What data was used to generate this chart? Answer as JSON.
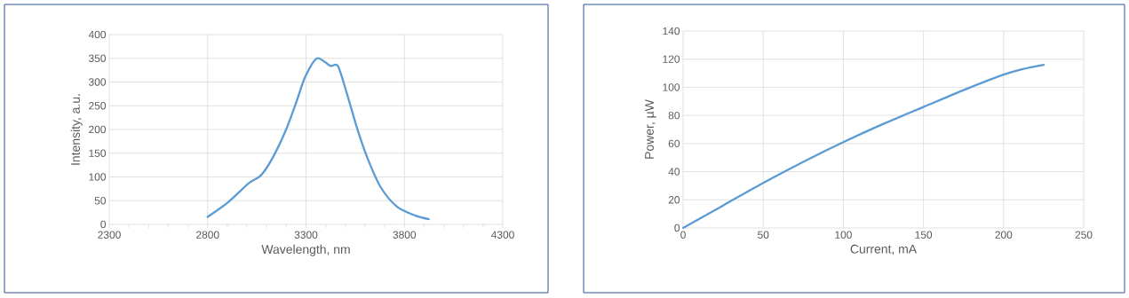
{
  "chart_data": [
    {
      "type": "line",
      "xlabel": "Wavelength, nm",
      "ylabel": "Intensity, a.u.",
      "grid": true,
      "marker": "none",
      "line_style": "solid",
      "xlim": [
        2300,
        4300
      ],
      "ylim": [
        0,
        400
      ],
      "xticks": [
        2300,
        {
          "value": 2400,
          "label": null
        },
        {
          "value": 2500,
          "label": null
        },
        {
          "value": 2600,
          "label": null
        },
        {
          "value": 2700,
          "label": null
        },
        2800,
        {
          "value": 2900,
          "label": null
        },
        {
          "value": 3000,
          "label": null
        },
        {
          "value": 3100,
          "label": null
        },
        {
          "value": 3200,
          "label": null
        },
        3300,
        {
          "value": 3400,
          "label": null
        },
        {
          "value": 3500,
          "label": null
        },
        {
          "value": 3600,
          "label": null
        },
        {
          "value": 3700,
          "label": null
        },
        3800,
        {
          "value": 3900,
          "label": null
        },
        {
          "value": 4000,
          "label": null
        },
        {
          "value": 4100,
          "label": null
        },
        {
          "value": 4200,
          "label": null
        },
        4300
      ],
      "yticks": [
        0,
        50,
        100,
        150,
        200,
        250,
        300,
        350,
        400
      ],
      "series": [
        {
          "color": "#5b9bd5",
          "x": [
            2800,
            2905,
            3010,
            3070,
            3130,
            3198,
            3251,
            3296,
            3356,
            3424,
            3462,
            3507,
            3560,
            3612,
            3680,
            3763,
            3853,
            3924
          ],
          "values": [
            16,
            47,
            87,
            103,
            140,
            199,
            258,
            311,
            350,
            334,
            334,
            277,
            202,
            140,
            78,
            37,
            19,
            11
          ]
        }
      ]
    },
    {
      "type": "line",
      "xlabel": "Current, mA",
      "ylabel": "Power, µW",
      "grid": true,
      "marker": "none",
      "line_style": "solid",
      "xlim": [
        0,
        250
      ],
      "ylim": [
        0,
        140
      ],
      "xticks": [
        0,
        50,
        100,
        150,
        200,
        250
      ],
      "yticks": [
        0,
        20,
        40,
        60,
        80,
        100,
        120,
        140
      ],
      "series": [
        {
          "color": "#5b9bd5",
          "x": [
            0,
            25,
            50,
            75,
            100,
            125,
            150,
            175,
            200,
            212,
            225
          ],
          "values": [
            0,
            16,
            32,
            47,
            61,
            74,
            86,
            98,
            109,
            113,
            116
          ]
        }
      ]
    }
  ]
}
